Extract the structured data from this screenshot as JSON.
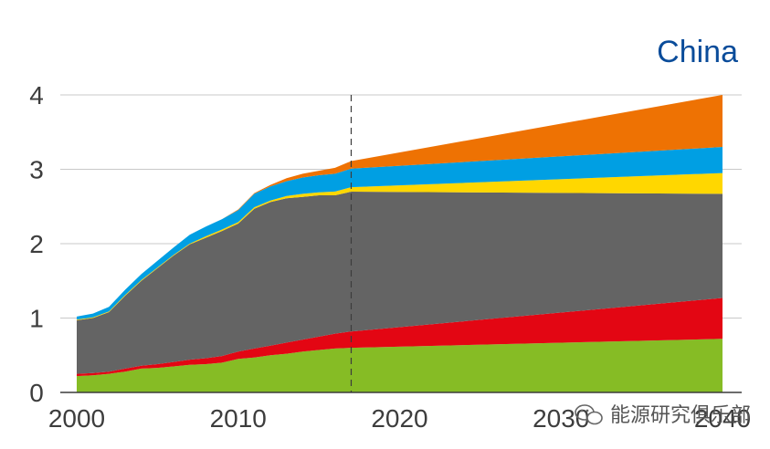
{
  "title": "China",
  "watermark": "能源研究俱乐部",
  "chart_data": {
    "type": "area",
    "stacked": true,
    "title": "China",
    "xlabel": "",
    "ylabel": "",
    "xlim": [
      2000,
      2040
    ],
    "ylim": [
      0,
      4
    ],
    "x_ticks": [
      "2000",
      "2010",
      "2020",
      "2030",
      "2040"
    ],
    "y_ticks": [
      "0",
      "1",
      "2",
      "3",
      "4"
    ],
    "grid": "horizontal",
    "projection_divider_x": 2017,
    "x": [
      2000,
      2001,
      2002,
      2003,
      2004,
      2005,
      2006,
      2007,
      2008,
      2009,
      2010,
      2011,
      2012,
      2013,
      2014,
      2015,
      2016,
      2017,
      2040
    ],
    "series": [
      {
        "color": "#86bc25",
        "values": [
          0.22,
          0.23,
          0.25,
          0.28,
          0.32,
          0.33,
          0.35,
          0.37,
          0.38,
          0.4,
          0.45,
          0.47,
          0.5,
          0.52,
          0.55,
          0.57,
          0.59,
          0.6,
          0.72
        ]
      },
      {
        "color": "#e30613",
        "values": [
          0.03,
          0.03,
          0.03,
          0.04,
          0.04,
          0.05,
          0.06,
          0.07,
          0.08,
          0.09,
          0.1,
          0.12,
          0.13,
          0.15,
          0.16,
          0.18,
          0.2,
          0.22,
          0.55
        ]
      },
      {
        "color": "#646464",
        "values": [
          0.72,
          0.74,
          0.8,
          0.98,
          1.14,
          1.29,
          1.43,
          1.55,
          1.62,
          1.68,
          1.72,
          1.88,
          1.93,
          1.94,
          1.92,
          1.9,
          1.86,
          1.88,
          1.4
        ]
      },
      {
        "color": "#ffd700",
        "values": [
          0.01,
          0.01,
          0.01,
          0.01,
          0.01,
          0.01,
          0.01,
          0.01,
          0.02,
          0.02,
          0.02,
          0.02,
          0.02,
          0.03,
          0.04,
          0.04,
          0.05,
          0.06,
          0.28
        ]
      },
      {
        "color": "#009fe3",
        "values": [
          0.04,
          0.05,
          0.06,
          0.07,
          0.08,
          0.09,
          0.1,
          0.12,
          0.13,
          0.14,
          0.16,
          0.18,
          0.19,
          0.2,
          0.22,
          0.23,
          0.24,
          0.25,
          0.35
        ]
      },
      {
        "color": "#ee7203",
        "values": [
          0.0,
          0.0,
          0.0,
          0.0,
          0.0,
          0.0,
          0.0,
          0.0,
          0.0,
          0.0,
          0.01,
          0.01,
          0.02,
          0.04,
          0.05,
          0.06,
          0.08,
          0.1,
          0.7
        ]
      }
    ]
  }
}
